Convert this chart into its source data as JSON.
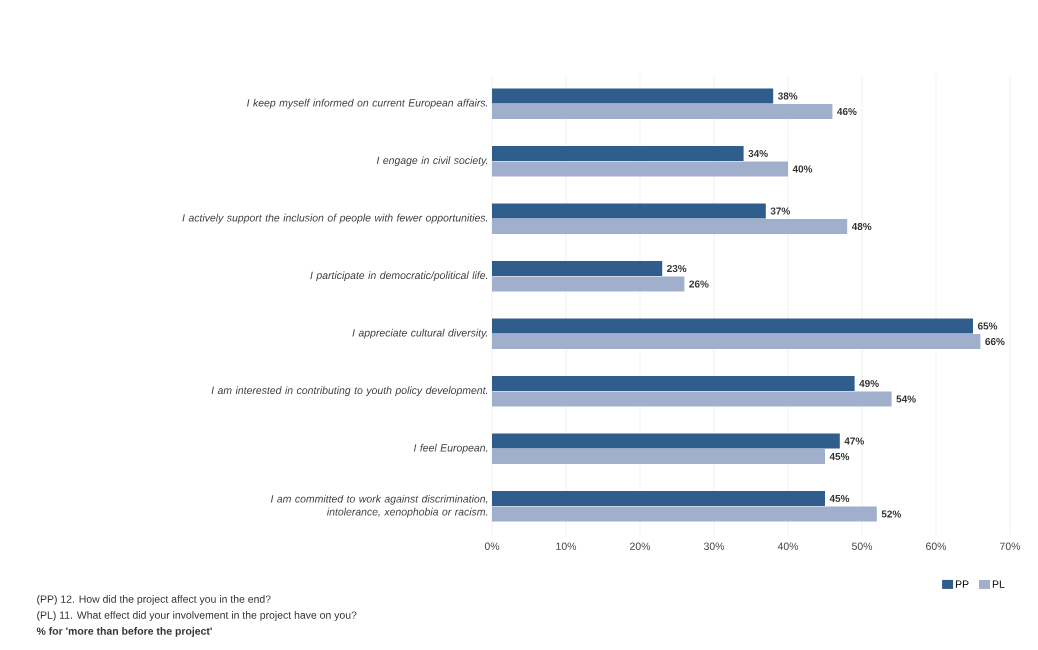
{
  "chart_data": {
    "type": "bar",
    "orientation": "horizontal",
    "categories": [
      "I keep myself informed on current European affairs.",
      "I engage in civil society.",
      "I actively support the inclusion of people with fewer opportunities.",
      "I participate in democratic/political life.",
      "I appreciate cultural diversity.",
      "I am interested in contributing to youth policy development.",
      "I feel European.",
      "I am committed to work against discrimination, intolerance, xenophobia or racism."
    ],
    "series": [
      {
        "name": "PP",
        "color": "#2f5d8c",
        "values": [
          38,
          34,
          37,
          23,
          65,
          49,
          47,
          45
        ],
        "value_labels": [
          "38%",
          "34%",
          "37%",
          "23%",
          "65%",
          "49%",
          "47%",
          "45%"
        ]
      },
      {
        "name": "PL",
        "color": "#a0afcc",
        "values": [
          46,
          40,
          48,
          26,
          66,
          54,
          45,
          52
        ],
        "value_labels": [
          "46%",
          "40%",
          "48%",
          "26%",
          "66%",
          "54%",
          "45%",
          "52%"
        ]
      }
    ],
    "xlim": [
      0,
      70
    ],
    "xticks": [
      {
        "value": 0,
        "label": "0%"
      },
      {
        "value": 10,
        "label": "10%"
      },
      {
        "value": 20,
        "label": "20%"
      },
      {
        "value": 30,
        "label": "30%"
      },
      {
        "value": 40,
        "label": "40%"
      },
      {
        "value": 50,
        "label": "50%"
      },
      {
        "value": 60,
        "label": "60%"
      },
      {
        "value": 70,
        "label": "70%"
      }
    ],
    "grid": "x",
    "legend": "bottom right",
    "annotations": [
      "(PP) 12. How did the project affect you in the end?",
      "(PL) 11. What effect did your involvement in the project have on you?",
      "**% for 'more than before the project'**"
    ]
  }
}
